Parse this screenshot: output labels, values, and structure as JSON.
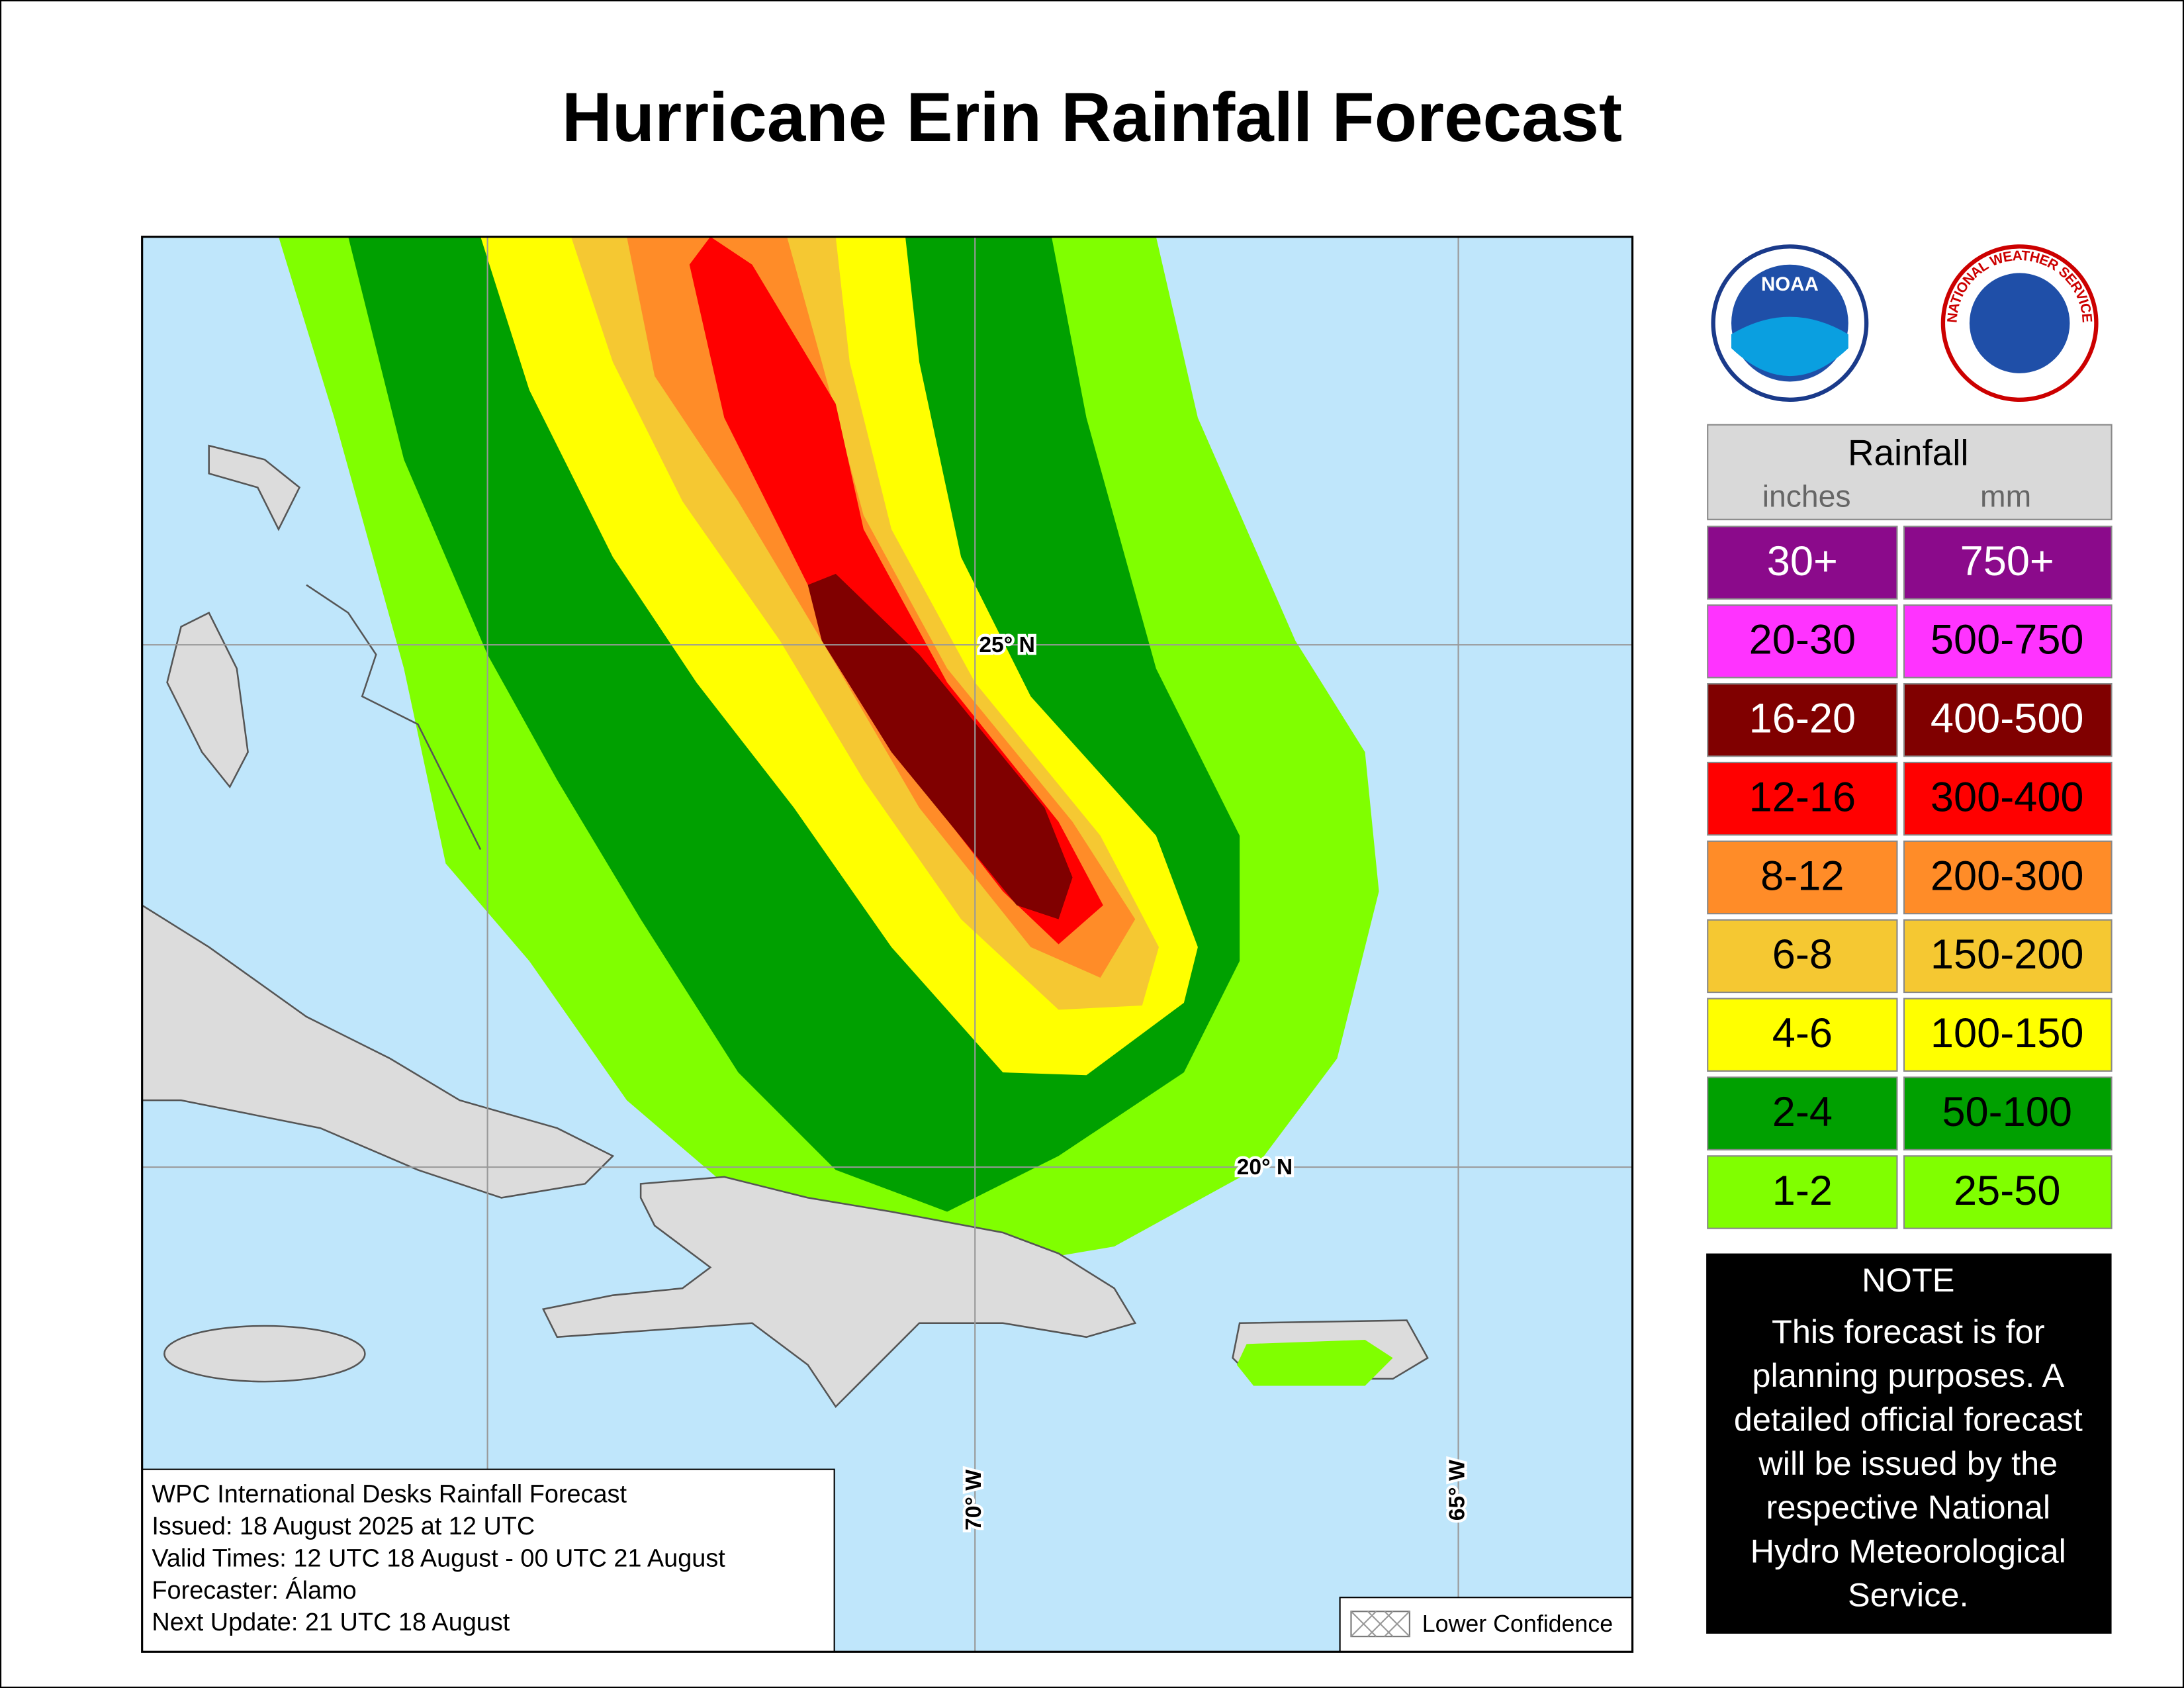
{
  "title": "Hurricane Erin Rainfall Forecast",
  "map": {
    "grid_labels": {
      "lat_25": "25° N",
      "lat_20": "20° N",
      "lon_70": "70° W",
      "lon_65": "65° W"
    },
    "info_lines": [
      "WPC International Desks Rainfall Forecast",
      "Issued: 18 August 2025 at 12 UTC",
      "Valid Times: 12 UTC 18 August - 00 UTC 21 August",
      "Forecaster: Álamo",
      "Next Update: 21 UTC 18 August"
    ],
    "lower_confidence": "Lower Confidence"
  },
  "logos": {
    "noaa": "NOAA",
    "nws": "NATIONAL WEATHER SERVICE"
  },
  "legend": {
    "title": "Rainfall",
    "columns": [
      "inches",
      "mm"
    ],
    "rows": [
      {
        "inches": "30+",
        "mm": "750+",
        "color": "#8b0a8b",
        "text_color": "#ffffff"
      },
      {
        "inches": "20-30",
        "mm": "500-750",
        "color": "#ff33ff",
        "text_color": "#000000"
      },
      {
        "inches": "16-20",
        "mm": "400-500",
        "color": "#800000",
        "text_color": "#ffffff"
      },
      {
        "inches": "12-16",
        "mm": "300-400",
        "color": "#ff0000",
        "text_color": "#000000"
      },
      {
        "inches": "8-12",
        "mm": "200-300",
        "color": "#ff8c28",
        "text_color": "#000000"
      },
      {
        "inches": "6-8",
        "mm": "150-200",
        "color": "#f5c832",
        "text_color": "#000000"
      },
      {
        "inches": "4-6",
        "mm": "100-150",
        "color": "#ffff00",
        "text_color": "#000000"
      },
      {
        "inches": "2-4",
        "mm": "50-100",
        "color": "#00a000",
        "text_color": "#000000"
      },
      {
        "inches": "1-2",
        "mm": "25-50",
        "color": "#80ff00",
        "text_color": "#000000"
      }
    ]
  },
  "note": {
    "title": "NOTE",
    "lines": [
      "This forecast is for",
      "planning purposes. A",
      "detailed official forecast",
      "will be issued by the",
      "respective National",
      "Hydro Meteorological",
      "Service."
    ]
  }
}
